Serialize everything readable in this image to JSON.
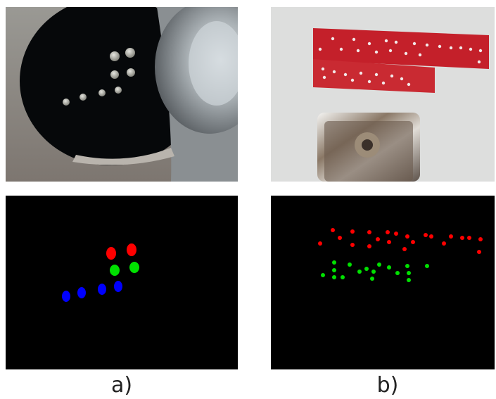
{
  "captions": {
    "left": "a)",
    "right": "b)"
  },
  "colors": {
    "background": "#ffffff",
    "mask": "#000000",
    "red": "#ff0000",
    "green": "#00e000",
    "blue": "#0000ff",
    "plate": "#c8202a",
    "wall": "#e4e6e4"
  }
}
